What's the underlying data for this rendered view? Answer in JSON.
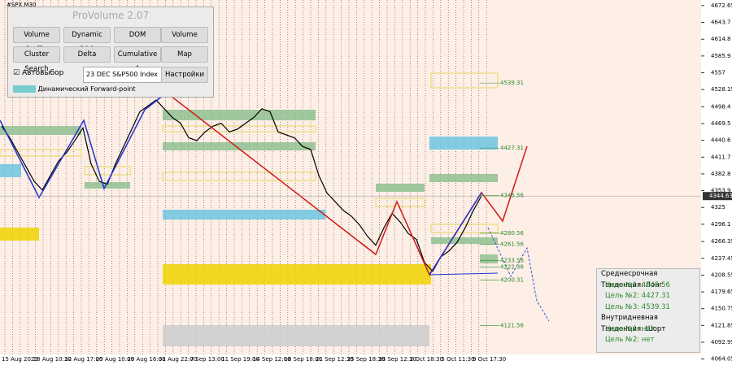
{
  "symbol": "#SPX,M30",
  "panel": {
    "title": "ProVolume 2.07",
    "buttons": [
      "Volume Profile",
      "Dynamic POC",
      "DOM",
      "Volume",
      "Cluster Search",
      "Delta",
      "Cumulative Δ",
      "Map"
    ],
    "auto_select": "Автовыбор",
    "instrument": "23 DEC S&P500 Index",
    "settings": "Настройки",
    "forward_point": "Динамический Forward-point"
  },
  "chart": {
    "ylim": [
      4053.7,
      4682.3
    ],
    "yticks": [
      4672.65,
      4643.7,
      4614.8,
      4585.9,
      4557.0,
      4528.15,
      4498.4,
      4469.5,
      4440.6,
      4411.7,
      4382.8,
      4353.9,
      4325.0,
      4296.1,
      4266.35,
      4237.45,
      4208.55,
      4179.65,
      4150.75,
      4121.85,
      4092.95,
      4064.05
    ],
    "current_price": 4344.63,
    "dates": [
      "15 Aug 2023",
      "18 Aug 10:30",
      "22 Aug 17:00",
      "25 Aug 10:00",
      "29 Aug 16:00",
      "31 Aug 22:00",
      "7 Sep 13:00",
      "11 Sep 19:00",
      "14 Sep 12:00",
      "18 Sep 18:00",
      "21 Sep 12:30",
      "25 Sep 18:30",
      "28 Sep 12:30",
      "2 Oct 18:30",
      "5 Oct 11:30",
      "9 Oct 17:30"
    ],
    "levels": [
      4539.31,
      4427.31,
      4345.56,
      4280.56,
      4261.56,
      4233.56,
      4222.36,
      4200.31,
      4121.56
    ],
    "price": [
      4465,
      4445,
      4420,
      4395,
      4370,
      4355,
      4380,
      4405,
      4420,
      4440,
      4462,
      4400,
      4370,
      4365,
      4400,
      4430,
      4460,
      4490,
      4500,
      4510,
      4495,
      4480,
      4470,
      4445,
      4440,
      4455,
      4465,
      4470,
      4455,
      4460,
      4470,
      4480,
      4495,
      4490,
      4455,
      4450,
      4445,
      4430,
      4425,
      4380,
      4350,
      4335,
      4320,
      4310,
      4295,
      4275,
      4260,
      4290,
      4315,
      4300,
      4280,
      4270,
      4230,
      4215,
      4240,
      4250,
      4265,
      4290,
      4320,
      4345
    ]
  },
  "info": {
    "mid_trend": "Среднесрочная Тенденция: Лонг",
    "mid_targets": [
      {
        "label": "Цель №1:",
        "value": "4345.56"
      },
      {
        "label": "Цель №2:",
        "value": "4427.31"
      },
      {
        "label": "Цель №3:",
        "value": "4539.31"
      }
    ],
    "intraday_trend": "Внутридневная Тенденция: Шорт",
    "intraday_targets": [
      {
        "label": "Цель №1:",
        "value": "нет"
      },
      {
        "label": "Цель №2:",
        "value": "нет"
      }
    ]
  }
}
